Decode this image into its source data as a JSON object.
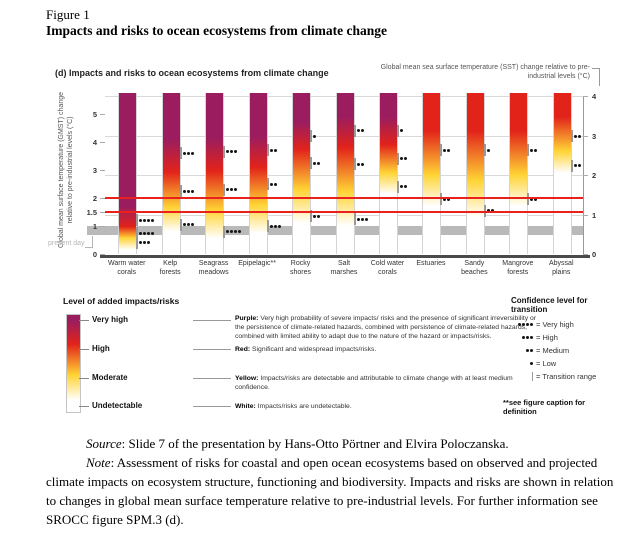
{
  "page": {
    "figure_label": "Figure 1",
    "figure_title": "Impacts and risks to ocean ecosystems from climate change"
  },
  "chart": {
    "panel_title": "(d) Impacts and risks to ocean ecosystems from climate change",
    "right_axis_title": "Global mean sea surface temperature (SST) change relative to pre-industrial levels (°C)",
    "left_axis_title": "Global mean surface temperature (GMST) change relative to pre-industrial levels (°C)",
    "present_day_label": "present day"
  },
  "colors": {
    "purple": "#9b1d5f",
    "red": "#e2231a",
    "yellow": "#ffd435",
    "white": "#ffffff",
    "refline": "#e8211d",
    "band": "#b9b9b9",
    "grid": "#d9d9d9",
    "baseline": "#4a4a4a"
  },
  "chart_data": {
    "type": "bar",
    "subtype": "gradient-risk-bars",
    "title": "(d) Impacts and risks to ocean ecosystems from climate change",
    "left_axis": {
      "label": "Global mean surface temperature (GMST) change relative to pre-industrial levels (°C)",
      "ticks": [
        5,
        4,
        3,
        2,
        1.5,
        1,
        0
      ],
      "range": [
        0,
        5.75
      ]
    },
    "right_axis": {
      "label": "Global mean sea surface temperature (SST) change relative to pre-industrial levels (°C)",
      "ticks": [
        4,
        3,
        2,
        1,
        0
      ],
      "range": [
        0,
        4
      ]
    },
    "reference_lines_gmst": [
      2.0,
      1.5
    ],
    "present_day_band_gmst": [
      0.68,
      1.0
    ],
    "dots_per_confidence": {
      "very high": 4,
      "high": 3,
      "medium": 2,
      "low": 1
    },
    "risk_levels": [
      "undetectable",
      "moderate",
      "high",
      "very high"
    ],
    "categories": [
      "Warm water corals",
      "Kelp forests",
      "Seagrass meadows",
      "Epipelagic**",
      "Rocky shores",
      "Salt marshes",
      "Cold water corals",
      "Estuaries",
      "Sandy beaches",
      "Mangrove forests",
      "Abyssal plains"
    ],
    "bars": [
      {
        "name": "Warm water corals",
        "label_lines": [
          "Warm water",
          "corals"
        ],
        "max_level": "very high",
        "transitions": [
          {
            "to": "moderate",
            "gmst": 0.4,
            "confidence": "high"
          },
          {
            "to": "high",
            "gmst": 0.75,
            "confidence": "very high"
          },
          {
            "to": "very high",
            "gmst": 1.2,
            "confidence": "very high"
          }
        ]
      },
      {
        "name": "Kelp forests",
        "label_lines": [
          "Kelp",
          "forests"
        ],
        "max_level": "very high",
        "transitions": [
          {
            "to": "moderate",
            "gmst": 1.05,
            "confidence": "high"
          },
          {
            "to": "high",
            "gmst": 2.25,
            "confidence": "high"
          },
          {
            "to": "very high",
            "gmst": 3.6,
            "confidence": "high"
          }
        ]
      },
      {
        "name": "Seagrass meadows",
        "label_lines": [
          "Seagrass",
          "meadows"
        ],
        "max_level": "very high",
        "transitions": [
          {
            "to": "moderate",
            "gmst": 0.8,
            "confidence": "very high"
          },
          {
            "to": "high",
            "gmst": 2.3,
            "confidence": "high"
          },
          {
            "to": "very high",
            "gmst": 3.65,
            "confidence": "high"
          }
        ]
      },
      {
        "name": "Epipelagic**",
        "label_lines": [
          "Epipelagic**",
          ""
        ],
        "max_level": "very high",
        "transitions": [
          {
            "to": "moderate",
            "gmst": 1.0,
            "confidence": "high"
          },
          {
            "to": "high",
            "gmst": 2.5,
            "confidence": "medium"
          },
          {
            "to": "very high",
            "gmst": 3.7,
            "confidence": "medium"
          }
        ]
      },
      {
        "name": "Rocky shores",
        "label_lines": [
          "Rocky",
          "shores"
        ],
        "max_level": "very high",
        "transitions": [
          {
            "to": "moderate",
            "gmst": 1.35,
            "confidence": "medium"
          },
          {
            "to": "high",
            "gmst": 3.25,
            "confidence": "medium"
          },
          {
            "to": "very high",
            "gmst": 4.2,
            "confidence": "low"
          }
        ]
      },
      {
        "name": "Salt marshes",
        "label_lines": [
          "Salt",
          "marshes"
        ],
        "max_level": "very high",
        "transitions": [
          {
            "to": "moderate",
            "gmst": 1.25,
            "confidence": "high"
          },
          {
            "to": "high",
            "gmst": 3.2,
            "confidence": "medium"
          },
          {
            "to": "very high",
            "gmst": 4.4,
            "confidence": "medium"
          }
        ]
      },
      {
        "name": "Cold water corals",
        "label_lines": [
          "Cold water",
          "corals"
        ],
        "max_level": "very high",
        "transitions": [
          {
            "to": "moderate",
            "gmst": 2.4,
            "confidence": "medium"
          },
          {
            "to": "high",
            "gmst": 3.4,
            "confidence": "medium"
          },
          {
            "to": "very high",
            "gmst": 4.4,
            "confidence": "low"
          }
        ]
      },
      {
        "name": "Estuaries",
        "label_lines": [
          "Estuaries",
          ""
        ],
        "max_level": "high",
        "transitions": [
          {
            "to": "moderate",
            "gmst": 1.95,
            "confidence": "medium"
          },
          {
            "to": "high",
            "gmst": 3.7,
            "confidence": "medium"
          }
        ]
      },
      {
        "name": "Sandy beaches",
        "label_lines": [
          "Sandy",
          "beaches"
        ],
        "max_level": "high",
        "transitions": [
          {
            "to": "moderate",
            "gmst": 1.55,
            "confidence": "medium"
          },
          {
            "to": "high",
            "gmst": 3.7,
            "confidence": "low"
          }
        ]
      },
      {
        "name": "Mangrove forests",
        "label_lines": [
          "Mangrove",
          "forests"
        ],
        "max_level": "high",
        "transitions": [
          {
            "to": "moderate",
            "gmst": 1.95,
            "confidence": "medium"
          },
          {
            "to": "high",
            "gmst": 3.7,
            "confidence": "medium"
          }
        ]
      },
      {
        "name": "Abyssal plains",
        "label_lines": [
          "Abyssal",
          "plains"
        ],
        "max_level": "high",
        "transitions": [
          {
            "to": "moderate",
            "gmst": 3.15,
            "confidence": "medium"
          },
          {
            "to": "high",
            "gmst": 4.2,
            "confidence": "medium"
          }
        ]
      }
    ]
  },
  "legend": {
    "title": "Level of added impacts/risks",
    "levels": [
      {
        "label": "Very high",
        "desc_lead": "Purple:",
        "desc": "Very high probability of severe impacts/ risks and the presence of significant irreversibility or the persistence of climate-related hazards, combined with persistence of climate-related hazards, combined with limited ability to adapt due to the nature of the hazard or impacts/risks."
      },
      {
        "label": "High",
        "desc_lead": "Red:",
        "desc": "Significant and widespread impacts/risks."
      },
      {
        "label": "Moderate",
        "desc_lead": "Yellow:",
        "desc": "Impacts/risks are detectable and attributable to climate change with at least medium confidence."
      },
      {
        "label": "Undetectable",
        "desc_lead": "White:",
        "desc": "Impacts/risks are undetectable."
      }
    ]
  },
  "confidence": {
    "title": "Confidence level for transition",
    "rows": [
      {
        "dots": 4,
        "label": "= Very high"
      },
      {
        "dots": 3,
        "label": "= High"
      },
      {
        "dots": 2,
        "label": "= Medium"
      },
      {
        "dots": 1,
        "label": "= Low"
      },
      {
        "range": true,
        "label": "= Transition range"
      }
    ],
    "footnote": "**see figure caption for definition"
  },
  "caption": {
    "source_label": "Source",
    "source_text": ": Slide 7 of the presentation by Hans-Otto Pörtner and Elvira Poloczanska.",
    "note_label": "Note",
    "note_text": ": Assessment of risks for coastal and open ocean ecosystems based on observed and projected climate impacts on ecosystem structure, functioning and biodiversity. Impacts and risks are shown in relation to changes in global mean surface temperature relative to pre-industrial levels. For further information see SROCC figure SPM.3 (d)."
  }
}
